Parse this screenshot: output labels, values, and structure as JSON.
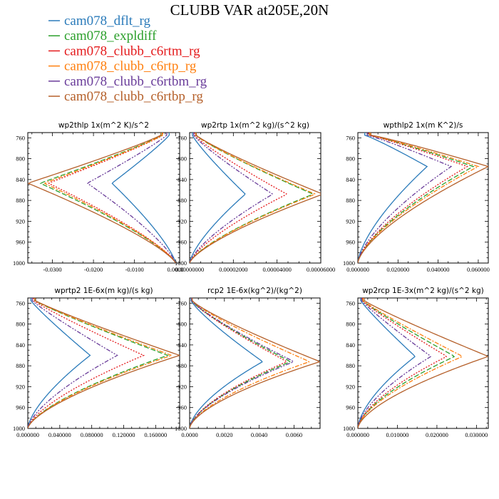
{
  "chart_data": {
    "type": "line",
    "title": "CLUBB VAR at205E,20N",
    "legend_position": "top-left",
    "series": [
      {
        "name": "cam078_dflt_rg",
        "color": "#2b7bba",
        "dash": "solid"
      },
      {
        "name": "cam078_expldiff",
        "color": "#2ca02c",
        "dash": "longdash"
      },
      {
        "name": "cam078_clubb_c6rtm_rg",
        "color": "#e41a1c",
        "dash": "dotted"
      },
      {
        "name": "cam078_clubb_c6rtp_rg",
        "color": "#ff7f0e",
        "dash": "dashdot"
      },
      {
        "name": "cam078_clubb_c6rtbm_rg",
        "color": "#6a3d9a",
        "dash": "dashdotdot"
      },
      {
        "name": "cam078_clubb_c6rtbp_rg",
        "color": "#b5602a",
        "dash": "solid"
      }
    ],
    "panels": [
      {
        "title": "wp2thlp   1x(m^2 K)/s^2",
        "xlim": [
          -0.036,
          0.001
        ],
        "ylim": [
          1000,
          750
        ],
        "xticks": [
          -0.03,
          -0.02,
          -0.01,
          0.0
        ],
        "xticklabels": [
          "-0.0300",
          "-0.0200",
          "-0.0100",
          "0.0000"
        ],
        "yticks": [
          760,
          800,
          840,
          880,
          920,
          960,
          1000
        ],
        "yticklabels": [
          "760",
          "800",
          "840",
          "880",
          "920",
          "960",
          "1000"
        ],
        "peak_level": 847,
        "curve_shape": {
          "lower_base": 1000,
          "upper_base": 755,
          "lower_exp": 1.3,
          "upper_exp": 1.1,
          "upper_end_factor": 0.1
        },
        "peaks": [
          -0.0155,
          -0.033,
          -0.031,
          -0.032,
          -0.0215,
          -0.036
        ]
      },
      {
        "title": "wp2rtp   1x(m^2 kg)/(s^2 kg)",
        "xlim": [
          0.0,
          6e-05
        ],
        "ylim": [
          1000,
          750
        ],
        "xticks": [
          0.0,
          2e-05,
          4e-05,
          6e-05
        ],
        "xticklabels": [
          "0.00000000",
          "0.00002000",
          "0.00004000",
          "0.00006000"
        ],
        "yticks": [
          760,
          800,
          840,
          880,
          920,
          960,
          1000
        ],
        "yticklabels": [
          "760",
          "800",
          "840",
          "880",
          "920",
          "960",
          "1000"
        ],
        "peak_level": 868,
        "curve_shape": {
          "lower_base": 1000,
          "upper_base": 755,
          "lower_exp": 1.4,
          "upper_exp": 1.15,
          "upper_end_factor": 0.05
        },
        "peaks": [
          2.55e-05,
          5.65e-05,
          4.45e-05,
          5.75e-05,
          3.8e-05,
          6.1e-05
        ]
      },
      {
        "title": "wpthlp2   1x(m K^2)/s",
        "xlim": [
          0.0,
          0.065
        ],
        "ylim": [
          1000,
          750
        ],
        "xticks": [
          0.0,
          0.02,
          0.04,
          0.06
        ],
        "xticklabels": [
          "0.000000",
          "0.020000",
          "0.040000",
          "0.060000"
        ],
        "yticks": [
          760,
          800,
          840,
          880,
          920,
          960,
          1000
        ],
        "yticklabels": [
          "760",
          "800",
          "840",
          "880",
          "920",
          "960",
          "1000"
        ],
        "peak_level": 815,
        "curve_shape": {
          "lower_base": 1000,
          "upper_base": 755,
          "lower_exp": 1.5,
          "upper_exp": 0.9,
          "upper_end_factor": 0.1
        },
        "peaks": [
          0.0345,
          0.0575,
          0.0545,
          0.06,
          0.0465,
          0.065
        ]
      },
      {
        "title": "wprtp2   1E-6x(m kg)/(s kg)",
        "xlim": [
          0.0,
          0.19
        ],
        "ylim": [
          1000,
          750
        ],
        "xticks": [
          0.0,
          0.04,
          0.08,
          0.12,
          0.16
        ],
        "xticklabels": [
          "0.000000",
          "0.040000",
          "0.080000",
          "0.120000",
          "0.160000"
        ],
        "yticks": [
          760,
          800,
          840,
          880,
          920,
          960,
          1000
        ],
        "yticklabels": [
          "760",
          "800",
          "840",
          "880",
          "920",
          "960",
          "1000"
        ],
        "peak_level": 860,
        "curve_shape": {
          "lower_base": 1000,
          "upper_base": 755,
          "lower_exp": 1.5,
          "upper_exp": 1.1,
          "upper_end_factor": 0.05
        },
        "peaks": [
          0.078,
          0.175,
          0.145,
          0.18,
          0.112,
          0.19
        ]
      },
      {
        "title": "rcp2   1E-6x(kg^2)/(kg^2)",
        "xlim": [
          0.0,
          0.0075
        ],
        "ylim": [
          1000,
          750
        ],
        "xticks": [
          0.0,
          0.002,
          0.004,
          0.006
        ],
        "xticklabels": [
          "0.0000",
          "0.0020",
          "0.0040",
          "0.0060"
        ],
        "yticks": [
          760,
          800,
          840,
          880,
          920,
          960,
          1000
        ],
        "yticklabels": [
          "760",
          "800",
          "840",
          "880",
          "920",
          "960",
          "1000"
        ],
        "peak_level": 872,
        "curve_shape": {
          "lower_base": 1000,
          "upper_base": 755,
          "lower_exp": 1.6,
          "upper_exp": 1.2,
          "upper_end_factor": 0.02
        },
        "peaks": [
          0.0042,
          0.0058,
          0.0056,
          0.0069,
          0.006,
          0.0075
        ]
      },
      {
        "title": "wp2rcp   1E-3x(m^2 kg)/(s^2 kg)",
        "xlim": [
          0.0,
          0.033
        ],
        "ylim": [
          1000,
          750
        ],
        "xticks": [
          0.0,
          0.01,
          0.02,
          0.03
        ],
        "xticklabels": [
          "0.000000",
          "0.010000",
          "0.020000",
          "0.030000"
        ],
        "yticks": [
          760,
          800,
          840,
          880,
          920,
          960,
          1000
        ],
        "yticklabels": [
          "760",
          "800",
          "840",
          "880",
          "920",
          "960",
          "1000"
        ],
        "peak_level": 862,
        "curve_shape": {
          "lower_base": 1000,
          "upper_base": 755,
          "lower_exp": 1.6,
          "upper_exp": 1.1,
          "upper_end_factor": 0.05
        },
        "peaks": [
          0.0145,
          0.0245,
          0.0225,
          0.0265,
          0.0185,
          0.033
        ]
      }
    ]
  }
}
